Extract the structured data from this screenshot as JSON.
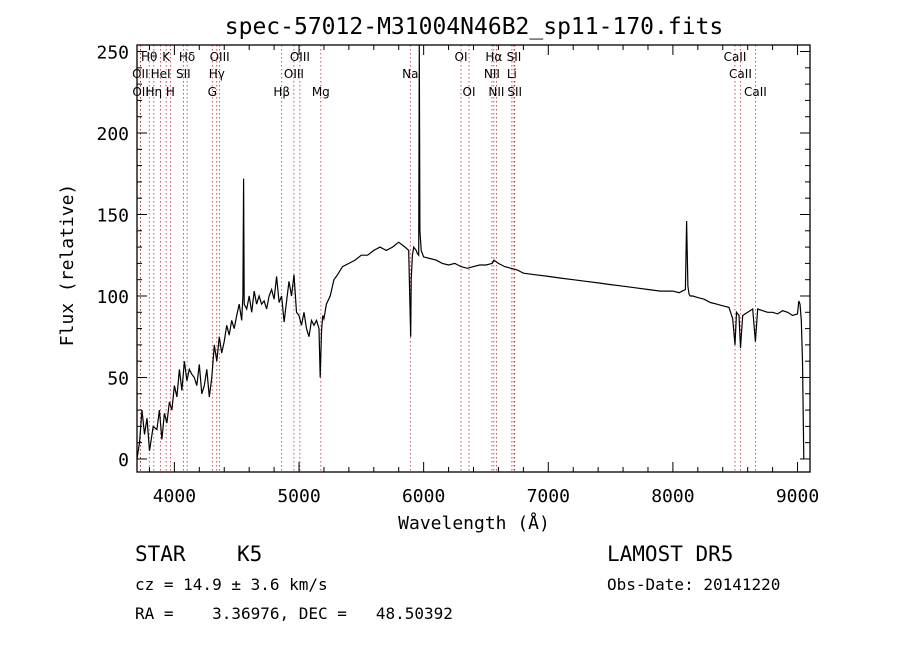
{
  "colors": {
    "background": "#ffffff",
    "spectrum": "#000000",
    "line_markers": "#cc2222",
    "text": "#000000"
  },
  "chart_data": {
    "type": "line",
    "title": "spec-57012-M31004N46B2_sp11-170.fits",
    "xlabel": "Wavelength (Å)",
    "ylabel": "Flux (relative)",
    "xlim": [
      3700,
      9100
    ],
    "ylim": [
      -8,
      254
    ],
    "x_ticks": [
      4000,
      5000,
      6000,
      7000,
      8000,
      9000
    ],
    "y_ticks": [
      0,
      50,
      100,
      150,
      200,
      250
    ],
    "grid": false,
    "series": [
      {
        "values_x": [
          3700,
          3720,
          3740,
          3760,
          3780,
          3800,
          3830,
          3860,
          3880,
          3900,
          3920,
          3940,
          3960,
          3980,
          4000,
          4020,
          4040,
          4060,
          4080,
          4100,
          4120,
          4140,
          4160,
          4180,
          4200,
          4220,
          4240,
          4260,
          4280,
          4300,
          4320,
          4340,
          4360,
          4380,
          4400,
          4420,
          4440,
          4460,
          4480,
          4500,
          4520,
          4540,
          4550,
          4555,
          4560,
          4580,
          4600,
          4620,
          4640,
          4660,
          4680,
          4700,
          4720,
          4740,
          4760,
          4780,
          4800,
          4820,
          4840,
          4860,
          4880,
          4900,
          4920,
          4940,
          4960,
          4980,
          5000,
          5020,
          5040,
          5060,
          5080,
          5100,
          5120,
          5140,
          5160,
          5170,
          5180,
          5190,
          5200,
          5220,
          5250,
          5280,
          5300,
          5350,
          5400,
          5450,
          5500,
          5550,
          5600,
          5650,
          5700,
          5750,
          5800,
          5850,
          5880,
          5890,
          5896,
          5900,
          5910,
          5920,
          5940,
          5950,
          5960,
          5965,
          5970,
          5980,
          6000,
          6050,
          6100,
          6150,
          6200,
          6250,
          6300,
          6350,
          6400,
          6450,
          6500,
          6550,
          6563,
          6600,
          6650,
          6700,
          6750,
          6800,
          6900,
          7000,
          7100,
          7200,
          7300,
          7400,
          7500,
          7600,
          7700,
          7800,
          7900,
          8000,
          8050,
          8100,
          8110,
          8120,
          8130,
          8140,
          8160,
          8200,
          8250,
          8300,
          8350,
          8400,
          8450,
          8480,
          8498,
          8510,
          8530,
          8542,
          8560,
          8600,
          8640,
          8662,
          8680,
          8720,
          8760,
          8800,
          8840,
          8880,
          8920,
          8960,
          9000,
          9010,
          9020,
          9030,
          9040,
          9050
        ],
        "values_y": [
          0,
          10,
          30,
          15,
          25,
          5,
          20,
          18,
          30,
          12,
          28,
          22,
          35,
          30,
          45,
          38,
          55,
          42,
          60,
          48,
          55,
          52,
          50,
          45,
          58,
          40,
          45,
          55,
          38,
          50,
          70,
          60,
          75,
          65,
          72,
          82,
          76,
          85,
          80,
          88,
          95,
          85,
          100,
          172,
          95,
          92,
          100,
          90,
          103,
          95,
          100,
          95,
          97,
          92,
          100,
          104,
          98,
          112,
          96,
          100,
          84,
          97,
          109,
          100,
          113,
          90,
          88,
          82,
          90,
          80,
          75,
          85,
          82,
          85,
          80,
          50,
          78,
          88,
          86,
          95,
          100,
          110,
          112,
          118,
          120,
          122,
          125,
          125,
          128,
          130,
          128,
          130,
          133,
          130,
          128,
          95,
          75,
          110,
          125,
          130,
          128,
          126,
          125,
          255,
          140,
          128,
          124,
          123,
          122,
          120,
          119,
          120,
          118,
          117,
          118,
          119,
          119,
          120,
          122,
          120,
          118,
          117,
          116,
          114,
          113,
          112,
          111,
          110,
          109,
          108,
          107,
          106,
          105,
          104,
          103,
          103,
          102,
          104,
          146,
          106,
          101,
          100,
          100,
          99,
          98,
          96,
          95,
          94,
          93,
          86,
          70,
          90,
          88,
          68,
          88,
          90,
          92,
          72,
          92,
          91,
          90,
          90,
          89,
          91,
          90,
          88,
          89,
          97,
          95,
          85,
          60,
          0
        ]
      }
    ],
    "spectral_lines": [
      {
        "label": "Hθ",
        "wave": 3798,
        "row": 1
      },
      {
        "label": "K",
        "wave": 3934,
        "row": 1
      },
      {
        "label": "Hδ",
        "wave": 4102,
        "row": 1
      },
      {
        "label": "OIII",
        "wave": 4363,
        "row": 1
      },
      {
        "label": "OIII",
        "wave": 5007,
        "row": 1
      },
      {
        "label": "OI",
        "wave": 6300,
        "row": 1
      },
      {
        "label": "Hα",
        "wave": 6563,
        "row": 1
      },
      {
        "label": "SII",
        "wave": 6725,
        "row": 1
      },
      {
        "label": "CaII",
        "wave": 8498,
        "row": 1
      },
      {
        "label": "OII",
        "wave": 3727,
        "row": 2
      },
      {
        "label": "HeI",
        "wave": 3889,
        "row": 2
      },
      {
        "label": "SII",
        "wave": 4072,
        "row": 2
      },
      {
        "label": "Hγ",
        "wave": 4340,
        "row": 2
      },
      {
        "label": "OIII",
        "wave": 4959,
        "row": 2
      },
      {
        "label": "Na",
        "wave": 5893,
        "row": 2
      },
      {
        "label": "NII",
        "wave": 6548,
        "row": 2
      },
      {
        "label": "Li",
        "wave": 6708,
        "row": 2
      },
      {
        "label": "CaII",
        "wave": 8542,
        "row": 2
      },
      {
        "label": "OII",
        "wave": 3729,
        "row": 3
      },
      {
        "label": "Hη",
        "wave": 3835,
        "row": 3
      },
      {
        "label": "H",
        "wave": 3968,
        "row": 3
      },
      {
        "label": "G",
        "wave": 4304,
        "row": 3
      },
      {
        "label": "Hβ",
        "wave": 4861,
        "row": 3
      },
      {
        "label": "Mg",
        "wave": 5175,
        "row": 3
      },
      {
        "label": "OI",
        "wave": 6364,
        "row": 3
      },
      {
        "label": "NII",
        "wave": 6584,
        "row": 3
      },
      {
        "label": "SII",
        "wave": 6731,
        "row": 3
      },
      {
        "label": "CaII",
        "wave": 8662,
        "row": 3
      }
    ]
  },
  "info": {
    "object_class": "STAR",
    "subclass": "K5",
    "survey": "LAMOST DR5",
    "cz": "cz = 14.9 ± 3.6 km/s",
    "obs_date": "Obs-Date: 20141220",
    "coords": "RA =    3.36976, DEC =   48.50392"
  }
}
